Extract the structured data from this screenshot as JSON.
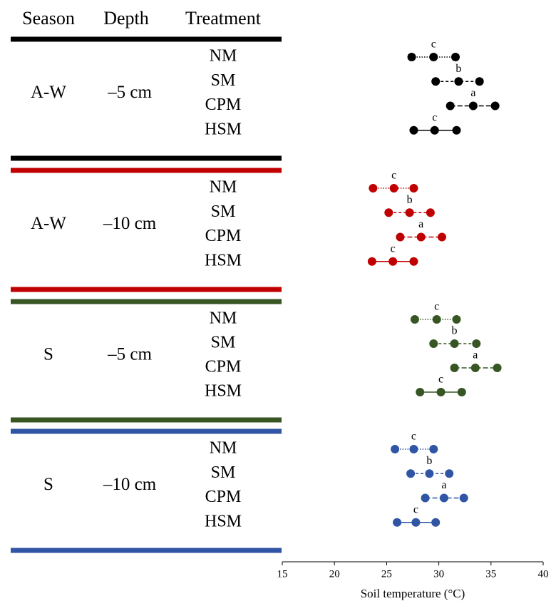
{
  "chart_data": {
    "type": "interval",
    "headers": {
      "season": "Season",
      "depth": "Depth",
      "treatment": "Treatment"
    },
    "xlabel": "Soil temperature (°C)",
    "xlim": [
      15,
      40
    ],
    "xticks": [
      15,
      20,
      25,
      30,
      35,
      40
    ],
    "groups": [
      {
        "season": "A-W",
        "depth": "–5 cm",
        "color": "#000000",
        "rows": [
          {
            "treatment": "NM",
            "low": 27.4,
            "mean": 29.5,
            "high": 31.6,
            "letter": "c",
            "line": "dotted"
          },
          {
            "treatment": "SM",
            "low": 29.7,
            "mean": 31.9,
            "high": 33.9,
            "letter": "b",
            "line": "dashed"
          },
          {
            "treatment": "CPM",
            "low": 31.1,
            "mean": 33.3,
            "high": 35.4,
            "letter": "a",
            "line": "longdash"
          },
          {
            "treatment": "HSM",
            "low": 27.6,
            "mean": 29.6,
            "high": 31.7,
            "letter": "c",
            "line": "solid"
          }
        ]
      },
      {
        "season": "A-W",
        "depth": "–10 cm",
        "color": "#c00000",
        "rows": [
          {
            "treatment": "NM",
            "low": 23.7,
            "mean": 25.7,
            "high": 27.6,
            "letter": "c",
            "line": "dotted"
          },
          {
            "treatment": "SM",
            "low": 25.2,
            "mean": 27.2,
            "high": 29.2,
            "letter": "b",
            "line": "dashed"
          },
          {
            "treatment": "CPM",
            "low": 26.3,
            "mean": 28.3,
            "high": 30.3,
            "letter": "a",
            "line": "longdash"
          },
          {
            "treatment": "HSM",
            "low": 23.6,
            "mean": 25.6,
            "high": 27.6,
            "letter": "c",
            "line": "solid"
          }
        ]
      },
      {
        "season": "S",
        "depth": "–5 cm",
        "color": "#375623",
        "rows": [
          {
            "treatment": "NM",
            "low": 27.7,
            "mean": 29.8,
            "high": 31.7,
            "letter": "c",
            "line": "dotted"
          },
          {
            "treatment": "SM",
            "low": 29.5,
            "mean": 31.5,
            "high": 33.6,
            "letter": "b",
            "line": "dashed"
          },
          {
            "treatment": "CPM",
            "low": 31.5,
            "mean": 33.5,
            "high": 35.6,
            "letter": "a",
            "line": "longdash"
          },
          {
            "treatment": "HSM",
            "low": 28.2,
            "mean": 30.2,
            "high": 32.2,
            "letter": "c",
            "line": "solid"
          }
        ]
      },
      {
        "season": "S",
        "depth": "–10 cm",
        "color": "#2f55a4",
        "rows": [
          {
            "treatment": "NM",
            "low": 25.8,
            "mean": 27.6,
            "high": 29.5,
            "letter": "c",
            "line": "dotted"
          },
          {
            "treatment": "SM",
            "low": 27.3,
            "mean": 29.1,
            "high": 31.0,
            "letter": "b",
            "line": "dashed"
          },
          {
            "treatment": "CPM",
            "low": 28.7,
            "mean": 30.5,
            "high": 32.4,
            "letter": "a",
            "line": "longdash"
          },
          {
            "treatment": "HSM",
            "low": 26.0,
            "mean": 27.8,
            "high": 29.7,
            "letter": "c",
            "line": "solid"
          }
        ]
      }
    ]
  }
}
